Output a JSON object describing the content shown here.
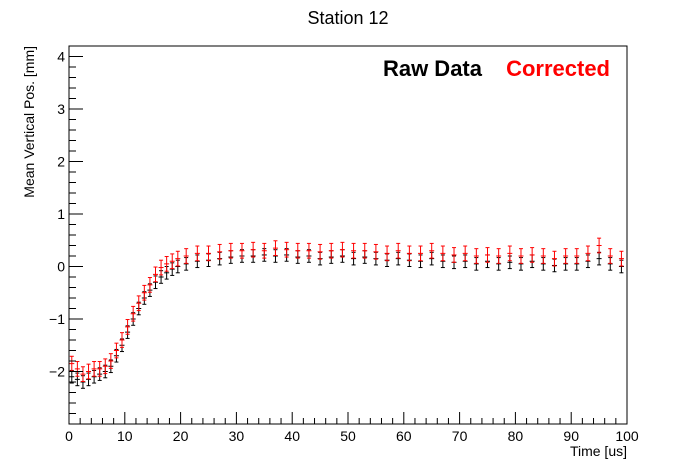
{
  "chart_data": {
    "type": "scatter",
    "title": "Station 12",
    "xlabel": "Time [us]",
    "ylabel": "Mean Vertical Pos. [mm]",
    "xlim": [
      0,
      100
    ],
    "ylim": [
      -3,
      4.2
    ],
    "x_ticks": [
      0,
      10,
      20,
      30,
      40,
      50,
      60,
      70,
      80,
      90,
      100
    ],
    "y_ticks": [
      -2,
      -1,
      0,
      1,
      2,
      3,
      4
    ],
    "y_tick_labels": [
      "−2",
      "−1",
      "0",
      "1",
      "2",
      "3",
      "4"
    ],
    "grid": false,
    "legend_position": "top-right",
    "error_bars": true,
    "series": [
      {
        "name": "Raw Data",
        "color": "#000000",
        "x": [
          0.5,
          1.5,
          2.5,
          3.5,
          4.5,
          5.5,
          6.5,
          7.5,
          8.5,
          9.5,
          10.5,
          11.5,
          12.5,
          13.5,
          14.5,
          15.5,
          16.5,
          17.5,
          18.5,
          19.5,
          21,
          23,
          25,
          27,
          29,
          31,
          33,
          35,
          37,
          39,
          41,
          43,
          45,
          47,
          49,
          51,
          53,
          55,
          57,
          59,
          61,
          63,
          65,
          67,
          69,
          71,
          73,
          75,
          77,
          79,
          81,
          83,
          85,
          87,
          89,
          91,
          93,
          95,
          97,
          99
        ],
        "y": [
          -2.1,
          -2.15,
          -2.2,
          -2.15,
          -2.1,
          -2.05,
          -2.0,
          -1.9,
          -1.7,
          -1.5,
          -1.25,
          -1.0,
          -0.8,
          -0.6,
          -0.45,
          -0.3,
          -0.2,
          -0.12,
          -0.05,
          0.0,
          0.05,
          0.1,
          0.12,
          0.15,
          0.18,
          0.2,
          0.2,
          0.22,
          0.2,
          0.22,
          0.18,
          0.2,
          0.15,
          0.18,
          0.2,
          0.15,
          0.18,
          0.15,
          0.12,
          0.15,
          0.12,
          0.1,
          0.15,
          0.1,
          0.08,
          0.1,
          0.05,
          0.1,
          0.05,
          0.08,
          0.05,
          0.1,
          0.05,
          0.02,
          0.05,
          0.05,
          0.1,
          0.15,
          0.05,
          0.0
        ],
        "yerr": 0.12
      },
      {
        "name": "Corrected",
        "color": "#ff0000",
        "x": [
          0.5,
          1.5,
          2.5,
          3.5,
          4.5,
          5.5,
          6.5,
          7.5,
          8.5,
          9.5,
          10.5,
          11.5,
          12.5,
          13.5,
          14.5,
          15.5,
          16.5,
          17.5,
          18.5,
          19.5,
          21,
          23,
          25,
          27,
          29,
          31,
          33,
          35,
          37,
          39,
          41,
          43,
          45,
          47,
          49,
          51,
          53,
          55,
          57,
          59,
          61,
          63,
          65,
          67,
          69,
          71,
          73,
          75,
          77,
          79,
          81,
          83,
          85,
          87,
          89,
          91,
          93,
          95,
          97,
          99
        ],
        "y": [
          -1.85,
          -1.95,
          -2.05,
          -2.0,
          -1.95,
          -1.95,
          -1.9,
          -1.8,
          -1.6,
          -1.4,
          -1.15,
          -0.9,
          -0.7,
          -0.5,
          -0.35,
          -0.15,
          -0.02,
          0.05,
          0.1,
          0.15,
          0.2,
          0.25,
          0.25,
          0.28,
          0.3,
          0.3,
          0.32,
          0.3,
          0.35,
          0.32,
          0.3,
          0.3,
          0.28,
          0.3,
          0.32,
          0.3,
          0.3,
          0.28,
          0.25,
          0.3,
          0.25,
          0.25,
          0.3,
          0.25,
          0.22,
          0.25,
          0.2,
          0.22,
          0.2,
          0.25,
          0.2,
          0.22,
          0.2,
          0.15,
          0.2,
          0.2,
          0.25,
          0.4,
          0.2,
          0.15
        ],
        "yerr": 0.14
      }
    ]
  }
}
